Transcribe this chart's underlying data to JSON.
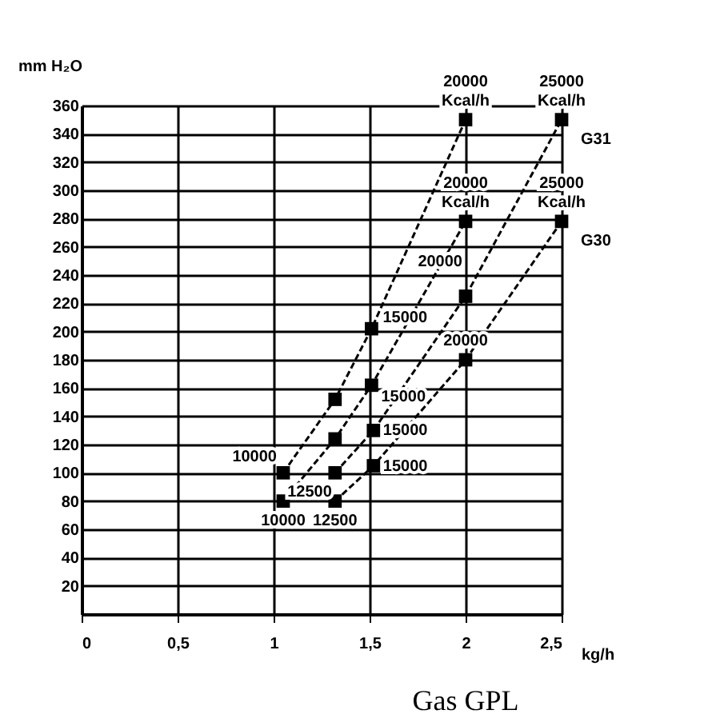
{
  "chart_data": {
    "type": "line",
    "title": "Gas GPL",
    "xlabel": "kg/h",
    "ylabel": "mm H₂O",
    "series": [
      {
        "color": "#000000",
        "x": [
          1.05,
          1.32,
          1.51,
          2.0
        ],
        "values": [
          100,
          152,
          202,
          350
        ]
      },
      {
        "color": "#000000",
        "x": [
          1.05,
          1.32,
          1.51,
          2.0
        ],
        "values": [
          80,
          124,
          162,
          278
        ]
      },
      {
        "name": "G31",
        "color": "#000000",
        "x": [
          1.32,
          1.52,
          2.0,
          2.5
        ],
        "values": [
          100,
          130,
          225,
          350
        ]
      },
      {
        "name": "G30",
        "color": "#000000",
        "x": [
          1.32,
          1.52,
          2.0,
          2.5
        ],
        "values": [
          80,
          105,
          180,
          278
        ]
      }
    ],
    "xlim": [
      0,
      2.5
    ],
    "xticks": [
      0,
      {
        "value": 0.5,
        "label": "0,5"
      },
      1,
      {
        "value": 1.5,
        "label": "1,5"
      },
      2,
      {
        "value": 2.5,
        "label": "2,5"
      }
    ],
    "ylim": [
      0,
      360
    ],
    "yticks": [
      {
        "value": 0,
        "label": null
      },
      20,
      40,
      60,
      80,
      100,
      120,
      140,
      160,
      180,
      200,
      220,
      240,
      260,
      280,
      300,
      320,
      340,
      360
    ],
    "grid": true,
    "marker": "square",
    "line_style": "dashed",
    "legend": false,
    "annotations": [
      {
        "text": "20000\nKcal/h",
        "x": 2.0,
        "y": 350
      },
      {
        "text": "25000\nKcal/h",
        "x": 2.5,
        "y": 350
      },
      {
        "text": "20000\nKcal/h",
        "x": 2.0,
        "y": 278
      },
      {
        "text": "25000\nKcal/h",
        "x": 2.5,
        "y": 278
      },
      {
        "text": "20000",
        "x": 2.0,
        "y": 225
      },
      {
        "text": "15000",
        "x": 1.51,
        "y": 202
      },
      {
        "text": "15000",
        "x": 1.51,
        "y": 162
      },
      {
        "text": "15000",
        "x": 1.52,
        "y": 130
      },
      {
        "text": "15000",
        "x": 1.52,
        "y": 105
      },
      {
        "text": "20000",
        "x": 2.0,
        "y": 180
      },
      {
        "text": "10000",
        "x": 1.05,
        "y": 100
      },
      {
        "text": "10000",
        "x": 1.05,
        "y": 80
      },
      {
        "text": "12500",
        "x": 1.32,
        "y": 100
      },
      {
        "text": "12500",
        "x": 1.32,
        "y": 80
      }
    ]
  }
}
